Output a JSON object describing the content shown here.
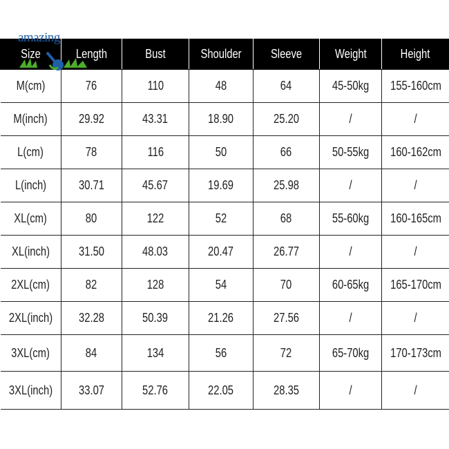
{
  "logo": {
    "text": "amazing"
  },
  "headers": [
    "Size",
    "Length",
    "Bust",
    "Shoulder",
    "Sleeve",
    "Weight",
    "Height"
  ],
  "rows": [
    [
      "M(cm)",
      "76",
      "110",
      "48",
      "64",
      "45-50kg",
      "155-160cm"
    ],
    [
      "M(inch)",
      "29.92",
      "43.31",
      "18.90",
      "25.20",
      "/",
      "/"
    ],
    [
      "L(cm)",
      "78",
      "116",
      "50",
      "66",
      "50-55kg",
      "160-162cm"
    ],
    [
      "L(inch)",
      "30.71",
      "45.67",
      "19.69",
      "25.98",
      "/",
      "/"
    ],
    [
      "XL(cm)",
      "80",
      "122",
      "52",
      "68",
      "55-60kg",
      "160-165cm"
    ],
    [
      "XL(inch)",
      "31.50",
      "48.03",
      "20.47",
      "26.77",
      "/",
      "/"
    ],
    [
      "2XL(cm)",
      "82",
      "128",
      "54",
      "70",
      "60-65kg",
      "165-170cm"
    ],
    [
      "2XL(inch)",
      "32.28",
      "50.39",
      "21.26",
      "27.56",
      "/",
      "/"
    ],
    [
      "3XL(cm)",
      "84",
      "134",
      "56",
      "72",
      "65-70kg",
      "170-173cm"
    ],
    [
      "3XL(inch)",
      "33.07",
      "52.76",
      "22.05",
      "28.35",
      "/",
      "/"
    ]
  ]
}
